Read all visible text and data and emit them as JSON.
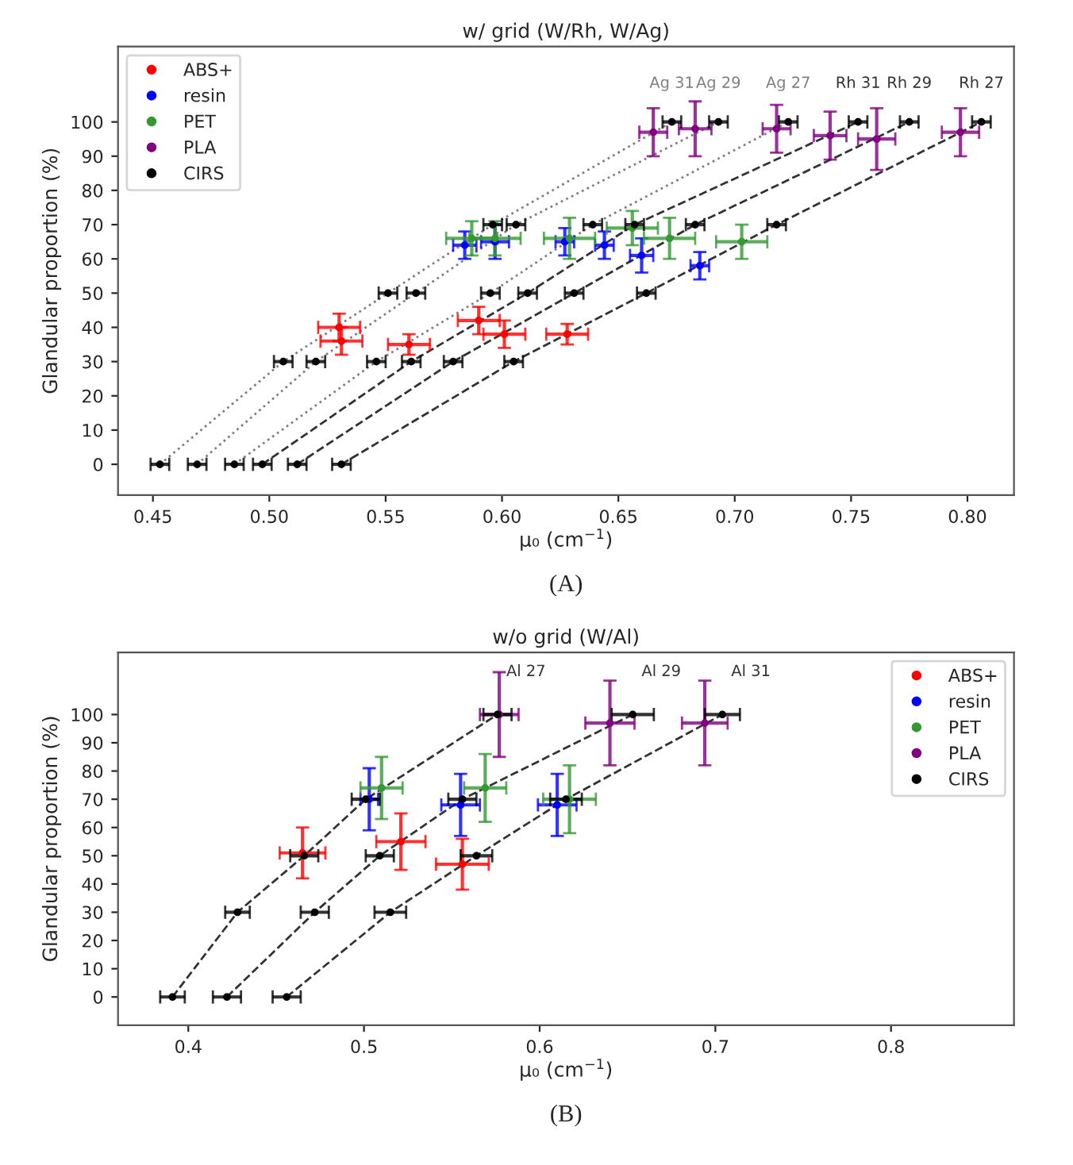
{
  "chart_data": [
    {
      "type": "scatter",
      "title": "w/ grid (W/Rh, W/Ag)",
      "xlabel": "μ₀ (cm$^{−1}$)",
      "ylabel": "Glandular proportion (%)",
      "annotations": [
        "(A)"
      ],
      "xlim": [
        0.435,
        0.82
      ],
      "ylim": [
        -9,
        122
      ],
      "xticks": [
        0.45,
        {
          "value": 0.5,
          "label": "0.50"
        },
        0.55,
        {
          "value": 0.6,
          "label": "0.60"
        },
        0.65,
        {
          "value": 0.7,
          "label": "0.70"
        },
        0.75,
        {
          "value": 0.8,
          "label": "0.80"
        }
      ],
      "yticks": [
        0,
        10,
        20,
        30,
        40,
        50,
        60,
        70,
        80,
        90,
        100
      ],
      "grid": false,
      "legend": "top left",
      "marker": "circle",
      "series": [
        {
          "name": "ABS+",
          "color": "#ff0000",
          "x": [
            0.53,
            0.531,
            0.56,
            0.59,
            0.601,
            0.628
          ],
          "values": [
            40,
            36,
            35,
            42,
            38,
            38
          ],
          "errors": [
            4,
            4,
            3,
            4,
            4,
            3
          ],
          "xerrors": [
            0.009,
            0.009,
            0.009,
            0.009,
            0.009,
            0.009
          ]
        },
        {
          "name": "resin",
          "color": "#0000ff",
          "x": [
            0.584,
            0.597,
            0.627,
            0.644,
            0.66,
            0.685
          ],
          "values": [
            64,
            65,
            65,
            64,
            61,
            58
          ],
          "errors": [
            4,
            5,
            4,
            4,
            5,
            4
          ],
          "xerrors": [
            0.005,
            0.006,
            0.004,
            0.004,
            0.005,
            0.004
          ]
        },
        {
          "name": "PET",
          "color": "#339933",
          "x": [
            0.587,
            0.597,
            0.629,
            0.656,
            0.672,
            0.703
          ],
          "values": [
            66,
            66,
            66,
            69,
            66,
            65
          ],
          "errors": [
            5,
            5,
            6,
            5,
            6,
            5
          ],
          "xerrors": [
            0.011,
            0.011,
            0.011,
            0.011,
            0.011,
            0.011
          ]
        },
        {
          "name": "PLA",
          "color": "#800080",
          "x": [
            0.665,
            0.683,
            0.718,
            0.741,
            0.761,
            0.797
          ],
          "values": [
            97,
            98,
            98,
            96,
            95,
            97
          ],
          "errors": [
            7,
            8,
            7,
            7,
            9,
            7
          ],
          "xerrors": [
            0.006,
            0.007,
            0.006,
            0.007,
            0.008,
            0.008
          ]
        },
        {
          "name": "CIRS",
          "color": "#000000",
          "x": [
            0.453,
            0.469,
            0.485,
            0.497,
            0.512,
            0.531,
            0.506,
            0.52,
            0.546,
            0.561,
            0.579,
            0.605,
            0.551,
            0.563,
            0.595,
            0.611,
            0.631,
            0.662,
            0.596,
            0.606,
            0.639,
            0.657,
            0.683,
            0.718,
            0.673,
            0.693,
            0.723,
            0.753,
            0.775,
            0.806
          ],
          "values": [
            0,
            0,
            0,
            0,
            0,
            0,
            30,
            30,
            30,
            30,
            30,
            30,
            50,
            50,
            50,
            50,
            50,
            50,
            70,
            70,
            70,
            70,
            70,
            70,
            100,
            100,
            100,
            100,
            100,
            100
          ],
          "xerrors": [
            0.004,
            0.004,
            0.004,
            0.004,
            0.004,
            0.004,
            0.004,
            0.004,
            0.004,
            0.004,
            0.004,
            0.004,
            0.004,
            0.004,
            0.004,
            0.004,
            0.004,
            0.004,
            0.004,
            0.004,
            0.004,
            0.004,
            0.004,
            0.004,
            0.004,
            0.004,
            0.004,
            0.004,
            0.004,
            0.004
          ]
        },
        {
          "name": "Ag 31",
          "type": "line",
          "marker": "none",
          "line_style": "dotted",
          "color": "#808080",
          "x": [
            0.453,
            0.506,
            0.551,
            0.596,
            0.673
          ],
          "values": [
            0,
            30,
            50,
            70,
            100
          ]
        },
        {
          "name": "Ag 29",
          "type": "line",
          "marker": "none",
          "line_style": "dotted",
          "color": "#808080",
          "x": [
            0.469,
            0.52,
            0.563,
            0.606,
            0.693
          ],
          "values": [
            0,
            30,
            50,
            70,
            100
          ]
        },
        {
          "name": "Ag 27",
          "type": "line",
          "marker": "none",
          "line_style": "dotted",
          "color": "#808080",
          "x": [
            0.485,
            0.546,
            0.595,
            0.639,
            0.723
          ],
          "values": [
            0,
            30,
            50,
            70,
            100
          ]
        },
        {
          "name": "Rh 31",
          "type": "line",
          "marker": "none",
          "line_style": "dashed",
          "color": "#333333",
          "x": [
            0.497,
            0.561,
            0.611,
            0.657,
            0.753
          ],
          "values": [
            0,
            30,
            50,
            70,
            100
          ]
        },
        {
          "name": "Rh 29",
          "type": "line",
          "marker": "none",
          "line_style": "dashed",
          "color": "#333333",
          "x": [
            0.512,
            0.579,
            0.631,
            0.683,
            0.775
          ],
          "values": [
            0,
            30,
            50,
            70,
            100
          ]
        },
        {
          "name": "Rh 27",
          "type": "line",
          "marker": "none",
          "line_style": "dashed",
          "color": "#333333",
          "x": [
            0.531,
            0.605,
            0.662,
            0.718,
            0.806
          ],
          "values": [
            0,
            30,
            50,
            70,
            100
          ]
        }
      ]
    },
    {
      "type": "scatter",
      "title": "w/o grid (W/Al)",
      "xlabel": "μ₀ (cm$^{−1}$)",
      "ylabel": "Glandular proportion (%)",
      "annotations": [
        "(B)"
      ],
      "xlim": [
        0.36,
        0.87
      ],
      "ylim": [
        -10,
        122
      ],
      "xticks": [
        0.4,
        0.5,
        0.6,
        0.7,
        0.8
      ],
      "yticks": [
        0,
        10,
        20,
        30,
        40,
        50,
        60,
        70,
        80,
        90,
        100
      ],
      "grid": false,
      "legend": "top right",
      "marker": "circle",
      "series": [
        {
          "name": "ABS+",
          "color": "#ff0000",
          "x": [
            0.465,
            0.521,
            0.556
          ],
          "values": [
            51,
            55,
            47
          ],
          "errors": [
            9,
            10,
            9
          ],
          "xerrors": [
            0.013,
            0.014,
            0.015
          ]
        },
        {
          "name": "resin",
          "color": "#0000ff",
          "x": [
            0.503,
            0.555,
            0.61
          ],
          "values": [
            70,
            68,
            68
          ],
          "errors": [
            11,
            11,
            11
          ],
          "xerrors": [
            0.005,
            0.011,
            0.011
          ]
        },
        {
          "name": "PET",
          "color": "#339933",
          "x": [
            0.51,
            0.569,
            0.617
          ],
          "values": [
            74,
            74,
            70
          ],
          "errors": [
            11,
            12,
            12
          ],
          "xerrors": [
            0.012,
            0.012,
            0.015
          ]
        },
        {
          "name": "PLA",
          "color": "#800080",
          "x": [
            0.577,
            0.64,
            0.694
          ],
          "values": [
            100,
            97,
            97
          ],
          "errors": [
            15,
            15,
            15
          ],
          "xerrors": [
            0.011,
            0.014,
            0.013
          ]
        },
        {
          "name": "CIRS",
          "color": "#000000",
          "x": [
            0.391,
            0.422,
            0.456,
            0.428,
            0.472,
            0.515,
            0.466,
            0.509,
            0.564,
            0.501,
            0.556,
            0.615,
            0.576,
            0.653,
            0.704
          ],
          "values": [
            0,
            0,
            0,
            30,
            30,
            30,
            50,
            50,
            50,
            70,
            70,
            70,
            100,
            100,
            100
          ],
          "xerrors": [
            0.007,
            0.008,
            0.008,
            0.007,
            0.008,
            0.009,
            0.008,
            0.008,
            0.009,
            0.008,
            0.008,
            0.009,
            0.008,
            0.012,
            0.01
          ]
        },
        {
          "name": "Al 27",
          "type": "line",
          "marker": "none",
          "line_style": "dashed",
          "color": "#333333",
          "x": [
            0.391,
            0.428,
            0.466,
            0.501,
            0.576
          ],
          "values": [
            0,
            30,
            50,
            70,
            100
          ]
        },
        {
          "name": "Al 29",
          "type": "line",
          "marker": "none",
          "line_style": "dashed",
          "color": "#333333",
          "x": [
            0.422,
            0.472,
            0.509,
            0.556,
            0.653
          ],
          "values": [
            0,
            30,
            50,
            70,
            100
          ]
        },
        {
          "name": "Al 31",
          "type": "line",
          "marker": "none",
          "line_style": "dashed",
          "color": "#333333",
          "x": [
            0.456,
            0.515,
            0.564,
            0.615,
            0.704
          ],
          "values": [
            0,
            30,
            50,
            70,
            100
          ]
        }
      ]
    }
  ]
}
